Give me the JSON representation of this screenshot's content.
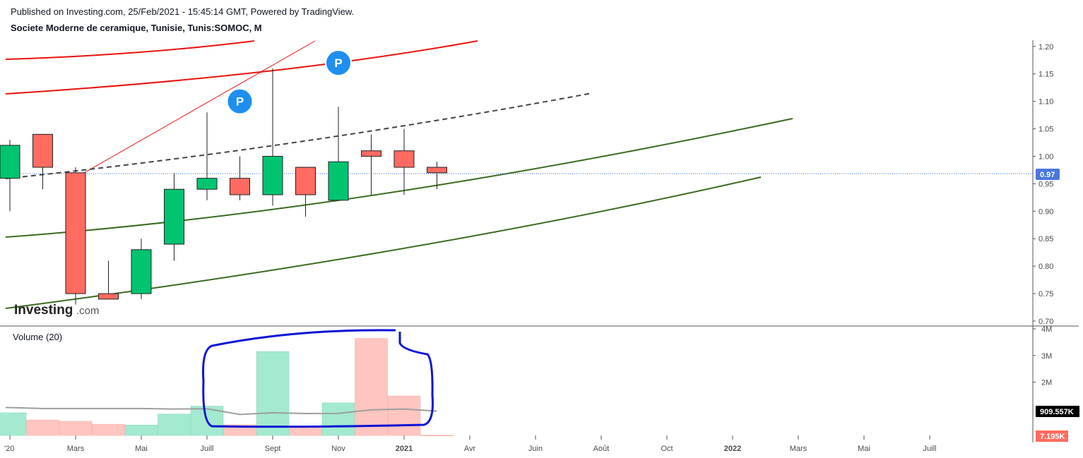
{
  "header": {
    "published": "Published on Investing.com, 25/Feb/2021 - 15:45:14 GMT, Powered by TradingView.",
    "symbol": "Societe Moderne de ceramique, Tunisie, Tunis:SOMOC, M"
  },
  "logo": {
    "main": "Investing",
    "suffix": ".com"
  },
  "volume_title": "Volume (20)",
  "colors": {
    "up": "#00c46f",
    "down": "#ff6b60",
    "vol_up": "#a4ead0",
    "vol_down": "#ffc5c0",
    "ma_line": "#9e9e9e",
    "green_line": "#3a6b1e",
    "red_line": "#e8120c",
    "price_tag": "#4b77dd",
    "marker": "#1e8ff0",
    "annotation": "#0a13d6"
  },
  "chart_data": [
    {
      "type": "candlestick",
      "title": "Societe Moderne de ceramique, Tunisie, Tunis:SOMOC, M",
      "interval": "monthly",
      "ylim": [
        0.7,
        1.21
      ],
      "y_ticks": [
        "1.20",
        "1.15",
        "1.10",
        "1.05",
        "1.00",
        "0.95",
        "0.90",
        "0.85",
        "0.80",
        "0.75",
        "0.70"
      ],
      "x_tick_labels": [
        "'20",
        "Mars",
        "Mai",
        "Juill",
        "Sept",
        "Nov",
        "2021",
        "Avr",
        "Juin",
        "Août",
        "Oct",
        "2022",
        "Mars",
        "Mai",
        "Juill"
      ],
      "last_price": "0.97",
      "candles": [
        {
          "month": "2020-01",
          "open": 0.96,
          "high": 1.03,
          "low": 0.9,
          "close": 1.02
        },
        {
          "month": "2020-02",
          "open": 1.04,
          "high": 1.04,
          "low": 0.94,
          "close": 0.98
        },
        {
          "month": "2020-03",
          "open": 0.97,
          "high": 0.98,
          "low": 0.73,
          "close": 0.75
        },
        {
          "month": "2020-04",
          "open": 0.75,
          "high": 0.81,
          "low": 0.74,
          "close": 0.74
        },
        {
          "month": "2020-05",
          "open": 0.75,
          "high": 0.85,
          "low": 0.74,
          "close": 0.83
        },
        {
          "month": "2020-06",
          "open": 0.84,
          "high": 0.97,
          "low": 0.81,
          "close": 0.94
        },
        {
          "month": "2020-07",
          "open": 0.94,
          "high": 1.08,
          "low": 0.92,
          "close": 0.96
        },
        {
          "month": "2020-08",
          "open": 0.96,
          "high": 1.0,
          "low": 0.92,
          "close": 0.93
        },
        {
          "month": "2020-09",
          "open": 0.93,
          "high": 1.16,
          "low": 0.91,
          "close": 1.0
        },
        {
          "month": "2020-10",
          "open": 0.98,
          "high": 0.98,
          "low": 0.89,
          "close": 0.93
        },
        {
          "month": "2020-11",
          "open": 0.92,
          "high": 1.09,
          "low": 0.92,
          "close": 0.99
        },
        {
          "month": "2020-12",
          "open": 1.01,
          "high": 1.04,
          "low": 0.93,
          "close": 1.0
        },
        {
          "month": "2021-01",
          "open": 1.01,
          "high": 1.05,
          "low": 0.93,
          "close": 0.98
        },
        {
          "month": "2021-02",
          "open": 0.98,
          "high": 0.99,
          "low": 0.94,
          "close": 0.97
        }
      ],
      "markers": [
        {
          "label": "P",
          "month": "2020-08",
          "price": 1.1
        },
        {
          "label": "P",
          "month": "2020-11",
          "price": 1.17
        }
      ]
    },
    {
      "type": "bar",
      "title": "Volume (20)",
      "ylim": [
        0,
        4000000
      ],
      "y_ticks": [
        "4M",
        "3M",
        "2M"
      ],
      "last_volume_label": "909.557K",
      "last_bar_label": "7.195K",
      "bars": [
        {
          "month": "2020-01",
          "value": 850000,
          "dir": "up"
        },
        {
          "month": "2020-02",
          "value": 580000,
          "dir": "down"
        },
        {
          "month": "2020-03",
          "value": 530000,
          "dir": "down"
        },
        {
          "month": "2020-04",
          "value": 420000,
          "dir": "down"
        },
        {
          "month": "2020-05",
          "value": 390000,
          "dir": "up"
        },
        {
          "month": "2020-06",
          "value": 800000,
          "dir": "up"
        },
        {
          "month": "2020-07",
          "value": 1100000,
          "dir": "up"
        },
        {
          "month": "2020-08",
          "value": 400000,
          "dir": "down"
        },
        {
          "month": "2020-09",
          "value": 3150000,
          "dir": "up"
        },
        {
          "month": "2020-10",
          "value": 320000,
          "dir": "down"
        },
        {
          "month": "2020-11",
          "value": 1220000,
          "dir": "up"
        },
        {
          "month": "2020-12",
          "value": 3640000,
          "dir": "down"
        },
        {
          "month": "2021-01",
          "value": 1480000,
          "dir": "down"
        },
        {
          "month": "2021-02",
          "value": 7195,
          "dir": "down"
        }
      ],
      "ma20": [
        1050000,
        1010000,
        1010000,
        1010000,
        1010000,
        990000,
        1000000,
        790000,
        850000,
        820000,
        830000,
        960000,
        990000,
        910000
      ]
    }
  ]
}
